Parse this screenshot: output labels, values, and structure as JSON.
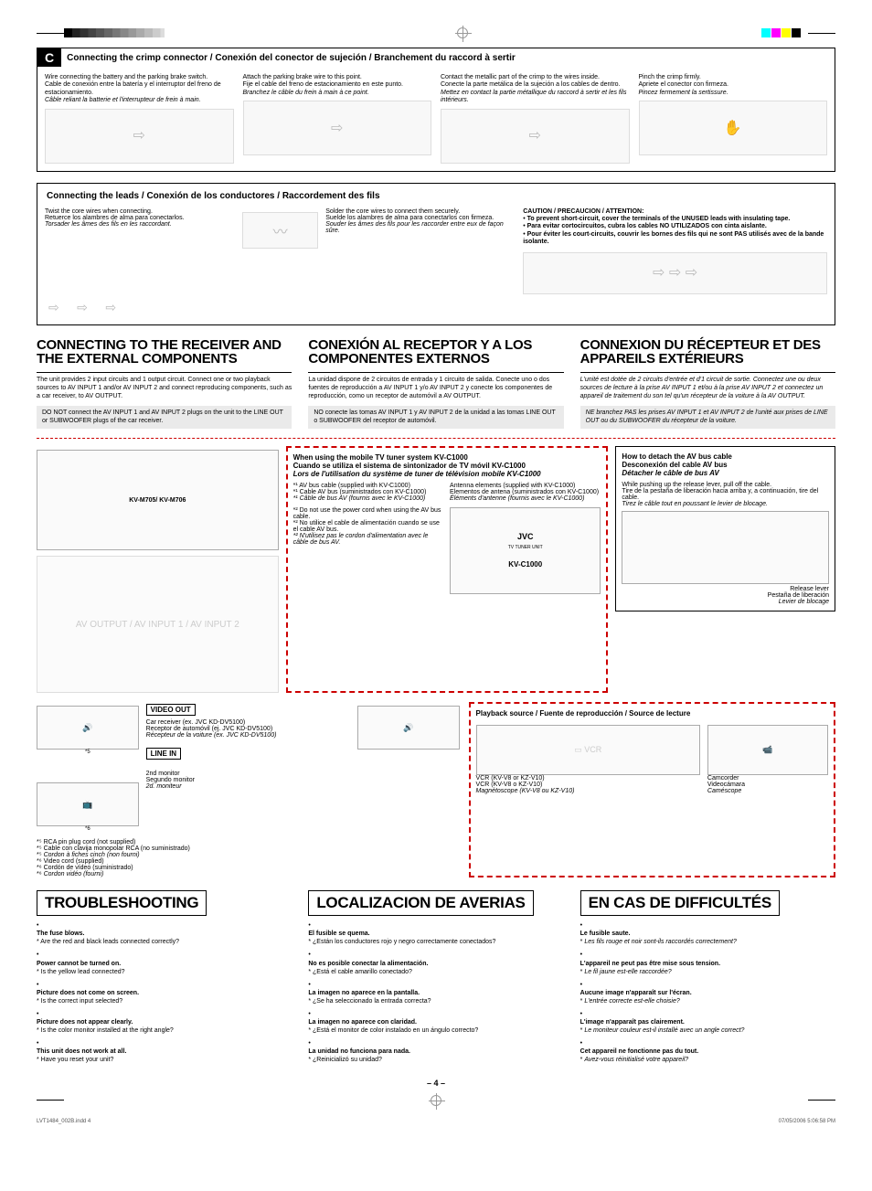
{
  "section_c": {
    "badge": "C",
    "title": "Connecting the crimp connector / Conexión del conector de sujeción / Branchement du raccord à sertir",
    "col1": {
      "en": "Wire connecting the battery and the parking brake switch.",
      "es": "Cable de conexión entre la batería y el interruptor del freno de estacionamiento.",
      "fr": "Câble reliant la batterie et l'interrupteur de frein à main."
    },
    "col2": {
      "en": "Attach the parking brake wire to this point.",
      "es": "Fije el cable del freno de estacionamiento en este punto.",
      "fr": "Branchez le câble du frein à main à ce point."
    },
    "col3": {
      "en": "Contact the metallic part of the crimp to the wires inside.",
      "es": "Conecte la parte metálica de la sujeción a los cables de dentro.",
      "fr": "Mettez en contact la partie métallique du raccord à sertir et les fils intérieurs."
    },
    "col4": {
      "en": "Pinch the crimp firmly.",
      "es": "Apriete el conector con firmeza.",
      "fr": "Pincez fermement la sertissure."
    }
  },
  "leads": {
    "title": "Connecting the leads / Conexión de los conductores / Raccordement des fils",
    "twist": {
      "en": "Twist the core wires when connecting.",
      "es": "Retuerce los alambres de alma para conectarlos.",
      "fr": "Torsader les âmes des fils en les raccordant."
    },
    "solder": {
      "en": "Solder the core wires to connect them securely.",
      "es": "Suelde los alambres de alma para conectarlos con firmeza.",
      "fr": "Souder les âmes des fils pour les raccorder entre eux de façon sûre."
    },
    "caution": {
      "head": "CAUTION / PRECAUCION / ATTENTION:",
      "en": "To prevent short-circuit, cover the terminals of the UNUSED leads with insulating tape.",
      "es": "Para evitar cortocircuitos, cubra los cables NO UTILIZADOS con cinta aislante.",
      "fr": "Pour éviter les court-circuits, couvrir les bornes des fils qui ne sont PAS utilisés avec de la bande isolante."
    }
  },
  "connect": {
    "en": {
      "head": "CONNECTING TO THE RECEIVER AND THE EXTERNAL COMPONENTS",
      "body": "The unit provides 2 input circuits and 1 output circuit. Connect one or two playback sources to AV INPUT 1 and/or AV INPUT 2 and connect reproducing components, such as a car receiver, to AV OUTPUT.",
      "note": "DO NOT connect the AV INPUT 1 and AV INPUT 2 plugs on the unit to the LINE OUT or SUBWOOFER plugs of the car receiver."
    },
    "es": {
      "head": "CONEXIÓN AL RECEPTOR Y A LOS COMPONENTES EXTERNOS",
      "body": "La unidad dispone de 2 circuitos de entrada y 1 circuito de salida. Conecte uno o dos fuentes de reproducción a AV INPUT 1 y/o AV INPUT 2 y conecte los componentes de reproducción, como un receptor de automóvil a AV OUTPUT.",
      "note": "NO conecte las tomas AV INPUT 1 y AV INPUT 2 de la unidad a las tomas LINE OUT o SUBWOOFER del receptor de automóvil."
    },
    "fr": {
      "head": "CONNEXION DU RÉCEPTEUR ET DES APPAREILS EXTÉRIEURS",
      "body": "L'unité est dotée de 2 circuits d'entrée et d'1 circuit de sortie. Connectez une ou deux sources de lecture à la prise AV INPUT 1 et/ou à la prise AV INPUT 2 et connectez un appareil de traitement du son tel qu'un récepteur de la voiture à la AV OUTPUT.",
      "note": "NE branchez PAS les prises AV INPUT 1 et AV INPUT 2 de l'unité aux prises de LINE OUT ou du SUBWOOFER du récepteur de la voiture."
    }
  },
  "diagram": {
    "tuner_title_en": "When using the mobile TV tuner system KV-C1000",
    "tuner_title_es": "Cuando se utiliza el sistema de sintonizador de TV móvil KV-C1000",
    "tuner_title_fr": "Lors de l'utilisation du système de tuner de télévision mobile KV-C1000",
    "antenna_en": "Antenna elements (supplied with KV-C1000)",
    "antenna_es": "Elementos de antena (suministrados con KV-C1000)",
    "antenna_fr": "Éléments d'antenne (fournis avec le KV-C1000)",
    "detach_title_en": "How to detach the AV bus cable",
    "detach_title_es": "Desconexión del cable AV bus",
    "detach_title_fr": "Détacher le câble de bus AV",
    "detach_en": "While pushing up the release lever, pull off the cable.",
    "detach_es": "Tire de la pestaña de liberación hacia arriba y, a continuación, tire del cable.",
    "detach_fr": "Tirez le câble tout en poussant le levier de blocage.",
    "release_en": "Release lever",
    "release_es": "Pestaña de liberación",
    "release_fr": "Levier de blocage",
    "avbus_en": "AV bus cable (supplied with KV-C1000)",
    "avbus_es": "Cable AV bus (suministrados con KV-C1000)",
    "avbus_fr": "Câble de bus AV (fournis avec le KV-C1000)",
    "nopower_en": "Do not use the power cord when using the AV bus cable.",
    "nopower_es": "No utilice el cable de alimentación cuando se use el cable AV bus.",
    "nopower_fr": "N'utilisez pas le cordon d'alimentation avec le câble de bus AV.",
    "model": "KV-M705/ KV-M706",
    "tuner_model": "KV-C1000",
    "playback_title": "Playback source / Fuente de reproducción / Source de lecture",
    "vcr_en": "VCR (KV-V8 or KZ-V10)",
    "vcr_es": "VCR (KV-V8 o KZ-V10)",
    "vcr_fr": "Magnétoscope (KV-V8 ou KZ-V10)",
    "cam_en": "Camcorder",
    "cam_es": "Videocámara",
    "cam_fr": "Caméscope",
    "video_out": "VIDEO OUT",
    "line_in": "LINE IN",
    "car_en": "Car receiver (ex. JVC KD-DV5100)",
    "car_es": "Receptor de automóvil (ej. JVC KD-DV5100)",
    "car_fr": "Récepteur de la voiture (ex. JVC KD-DV5100)",
    "mon2_en": "2nd monitor",
    "mon2_es": "Segundo monitor",
    "mon2_fr": "2d. moniteur",
    "rca_en": "RCA pin plug cord (not supplied)",
    "rca_es": "Cable con clavija monopolar RCA (no suministrado)",
    "rca_fr": "Cordon à fiches cinch (non fourni)",
    "vid_en": "Video cord (supplied)",
    "vid_es": "Cordón de vídeo (suministrado)",
    "vid_fr": "Cordon vidéo (fourni)"
  },
  "trouble": {
    "en": {
      "head": "TROUBLESHOOTING",
      "items": [
        {
          "b": "The fuse blows.",
          "q": "Are the red and black leads connected correctly?"
        },
        {
          "b": "Power cannot be turned on.",
          "q": "Is the yellow lead connected?"
        },
        {
          "b": "Picture does not come on screen.",
          "q": "Is the correct input selected?"
        },
        {
          "b": "Picture does not appear clearly.",
          "q": "Is the color monitor installed at the right angle?"
        },
        {
          "b": "This unit does not work at all.",
          "q": "Have you reset your unit?"
        }
      ]
    },
    "es": {
      "head": "LOCALIZACION DE AVERIAS",
      "items": [
        {
          "b": "El fusible se quema.",
          "q": "¿Están los conductores rojo y negro correctamente conectados?"
        },
        {
          "b": "No es posible conectar la alimentación.",
          "q": "¿Está el cable amarillo conectado?"
        },
        {
          "b": "La imagen no aparece en la pantalla.",
          "q": "¿Se ha seleccionado la entrada correcta?"
        },
        {
          "b": "La imagen no aparece con claridad.",
          "q": "¿Está el monitor de color instalado en un ángulo correcto?"
        },
        {
          "b": "La unidad no funciona para nada.",
          "q": "¿Reinicializó su unidad?"
        }
      ]
    },
    "fr": {
      "head": "EN CAS DE DIFFICULTÉS",
      "items": [
        {
          "b": "Le fusible saute.",
          "q": "Les fils rouge et noir sont-ils raccordés correctement?"
        },
        {
          "b": "L'appareil ne peut pas être mise sous tension.",
          "q": "Le fil jaune est-elle raccordée?"
        },
        {
          "b": "Aucune image n'apparaît sur l'écran.",
          "q": "L'entrée correcte est-elle choisie?"
        },
        {
          "b": "L'image n'apparaît pas clairement.",
          "q": "Le moniteur couleur est-il installé avec un angle correct?"
        },
        {
          "b": "Cet appareil ne fonctionne pas du tout.",
          "q": "Avez-vous réinitialisé votre appareil?"
        }
      ]
    }
  },
  "page": "– 4 –",
  "footer": {
    "left": "LVT1484_002B.indd   4",
    "right": "07/05/2006  5:06:58 PM"
  }
}
